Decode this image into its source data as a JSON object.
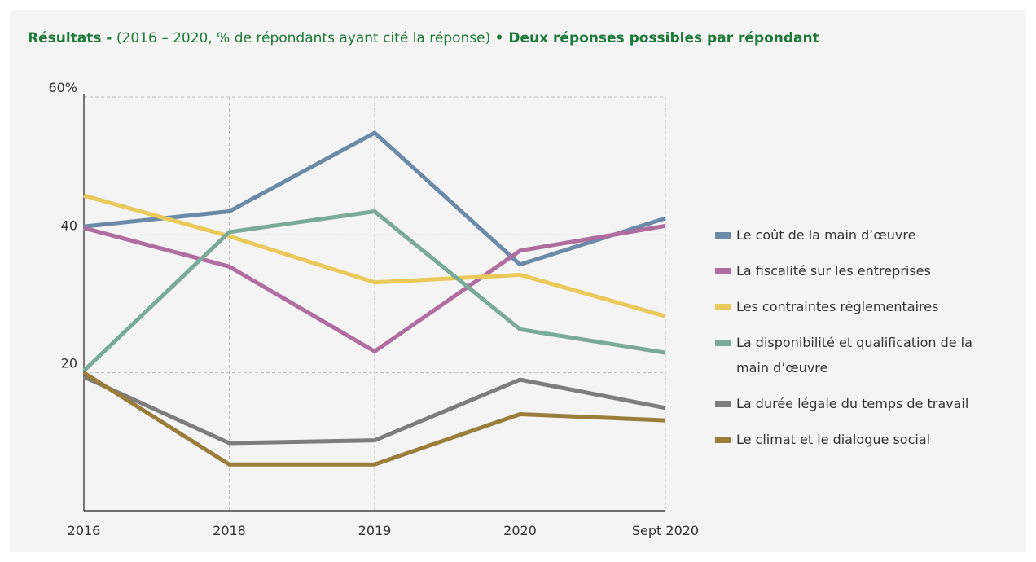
{
  "chart_data": {
    "type": "line",
    "title": "Résultats -",
    "subtitle": "(2016 – 2020, % de répondants ayant cité la réponse)",
    "note": "• Deux réponses possibles par répondant",
    "categories": [
      "2016",
      "2018",
      "2019",
      "2020",
      "Sept 2020"
    ],
    "ylim": [
      0,
      60
    ],
    "yticks": [
      20,
      40,
      {
        "value": 60,
        "label": "60%"
      }
    ],
    "grid": true,
    "legend": "right",
    "series": [
      {
        "name": "Le coût de la main d’œuvre",
        "color": "#6b8aa8",
        "values": [
          41.2,
          43.4,
          54.8,
          35.7,
          42.4
        ]
      },
      {
        "name": "La fiscalité sur les entreprises",
        "color": "#b06ea0",
        "values": [
          41,
          35.4,
          23.1,
          37.7,
          41.3
        ]
      },
      {
        "name": "Les contraintes règlementaires",
        "color": "#e8c95a",
        "values": [
          45.7,
          39.8,
          33.1,
          34.2,
          28.2
        ]
      },
      {
        "name": "La disponibilité et qualification de la main d’œuvre",
        "color": "#7aab98",
        "values": [
          20.3,
          40.4,
          43.4,
          26.3,
          22.9
        ]
      },
      {
        "name": "La durée légale du temps de travail",
        "color": "#7d7d7d",
        "values": [
          19.4,
          9.8,
          10.2,
          19,
          14.9
        ]
      },
      {
        "name": "Le climat et le dialogue social",
        "color": "#9a7d3a",
        "values": [
          20,
          6.7,
          6.7,
          14,
          13.1
        ]
      }
    ]
  }
}
